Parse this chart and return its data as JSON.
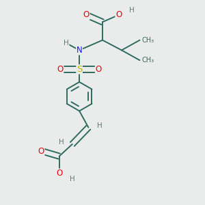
{
  "bg_color": "#eaecec",
  "bond_color": "#2d6b5e",
  "bond_lw": 1.4,
  "atom_colors": {
    "O": "#e8000b",
    "N": "#1414ff",
    "S": "#b8b800",
    "H": "#607878",
    "C": "#2d6b5e"
  },
  "font_size": 8.5,
  "fig_size": [
    3.0,
    3.0
  ],
  "dpi": 100,
  "xlim": [
    0,
    10
  ],
  "ylim": [
    0,
    10
  ]
}
